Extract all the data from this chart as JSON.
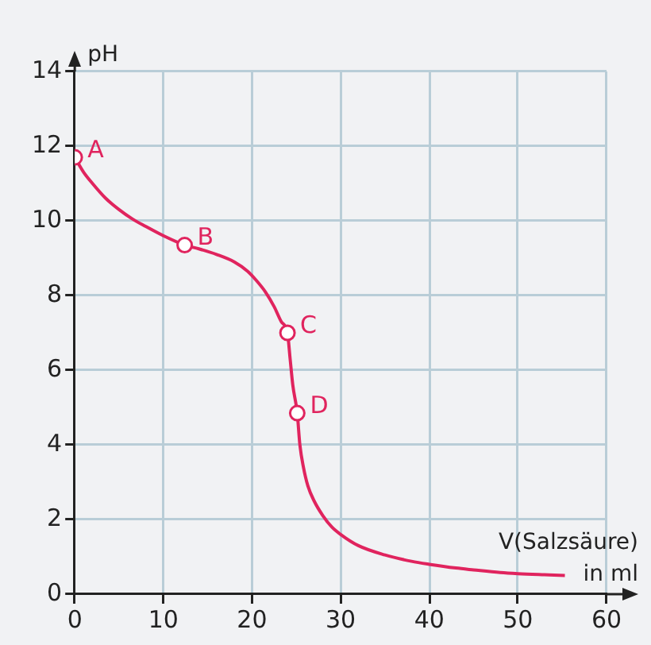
{
  "chart_data": {
    "type": "line",
    "xlabel": "V(Salzsäure) in ml",
    "ylabel": "pH",
    "xlim": [
      0,
      60
    ],
    "xticks": [
      0,
      10,
      20,
      30,
      40,
      50,
      60
    ],
    "ylim": [
      0,
      14
    ],
    "yticks": [
      0,
      2,
      4,
      6,
      8,
      10,
      12,
      14
    ],
    "grid": true,
    "legend": false,
    "series": [
      {
        "color": "#e0245e",
        "marker": "none",
        "line_style": "solid",
        "x": [
          0,
          1,
          2,
          3.5,
          5,
          6.5,
          8,
          10,
          12.4,
          14,
          16,
          18,
          19.5,
          20.5,
          21.5,
          22.5,
          23.3,
          24,
          24.3,
          24.6,
          25.1,
          25.4,
          25.8,
          26.3,
          27,
          28,
          29,
          30,
          32,
          35,
          38,
          40,
          43,
          45,
          48,
          50,
          53,
          55.3
        ],
        "values": [
          11.7,
          11.3,
          11.0,
          10.6,
          10.3,
          10.05,
          9.85,
          9.6,
          9.35,
          9.25,
          9.1,
          8.9,
          8.65,
          8.4,
          8.1,
          7.7,
          7.3,
          7.0,
          6.3,
          5.6,
          4.85,
          4.0,
          3.4,
          2.9,
          2.5,
          2.1,
          1.8,
          1.6,
          1.3,
          1.05,
          0.88,
          0.8,
          0.7,
          0.65,
          0.58,
          0.55,
          0.52,
          0.5
        ]
      },
      {
        "type": "scatter",
        "color": "#e0245e",
        "marker": "circle",
        "x": [
          0,
          12.4,
          24,
          25.1
        ],
        "values": [
          11.7,
          9.35,
          7.0,
          4.85
        ]
      }
    ],
    "annotations": [
      {
        "text": "A",
        "x": 0,
        "y": 11.7
      },
      {
        "text": "B",
        "x": 12.4,
        "y": 9.35
      },
      {
        "text": "C",
        "x": 24,
        "y": 7.0
      },
      {
        "text": "D",
        "x": 25.1,
        "y": 4.85
      }
    ]
  }
}
